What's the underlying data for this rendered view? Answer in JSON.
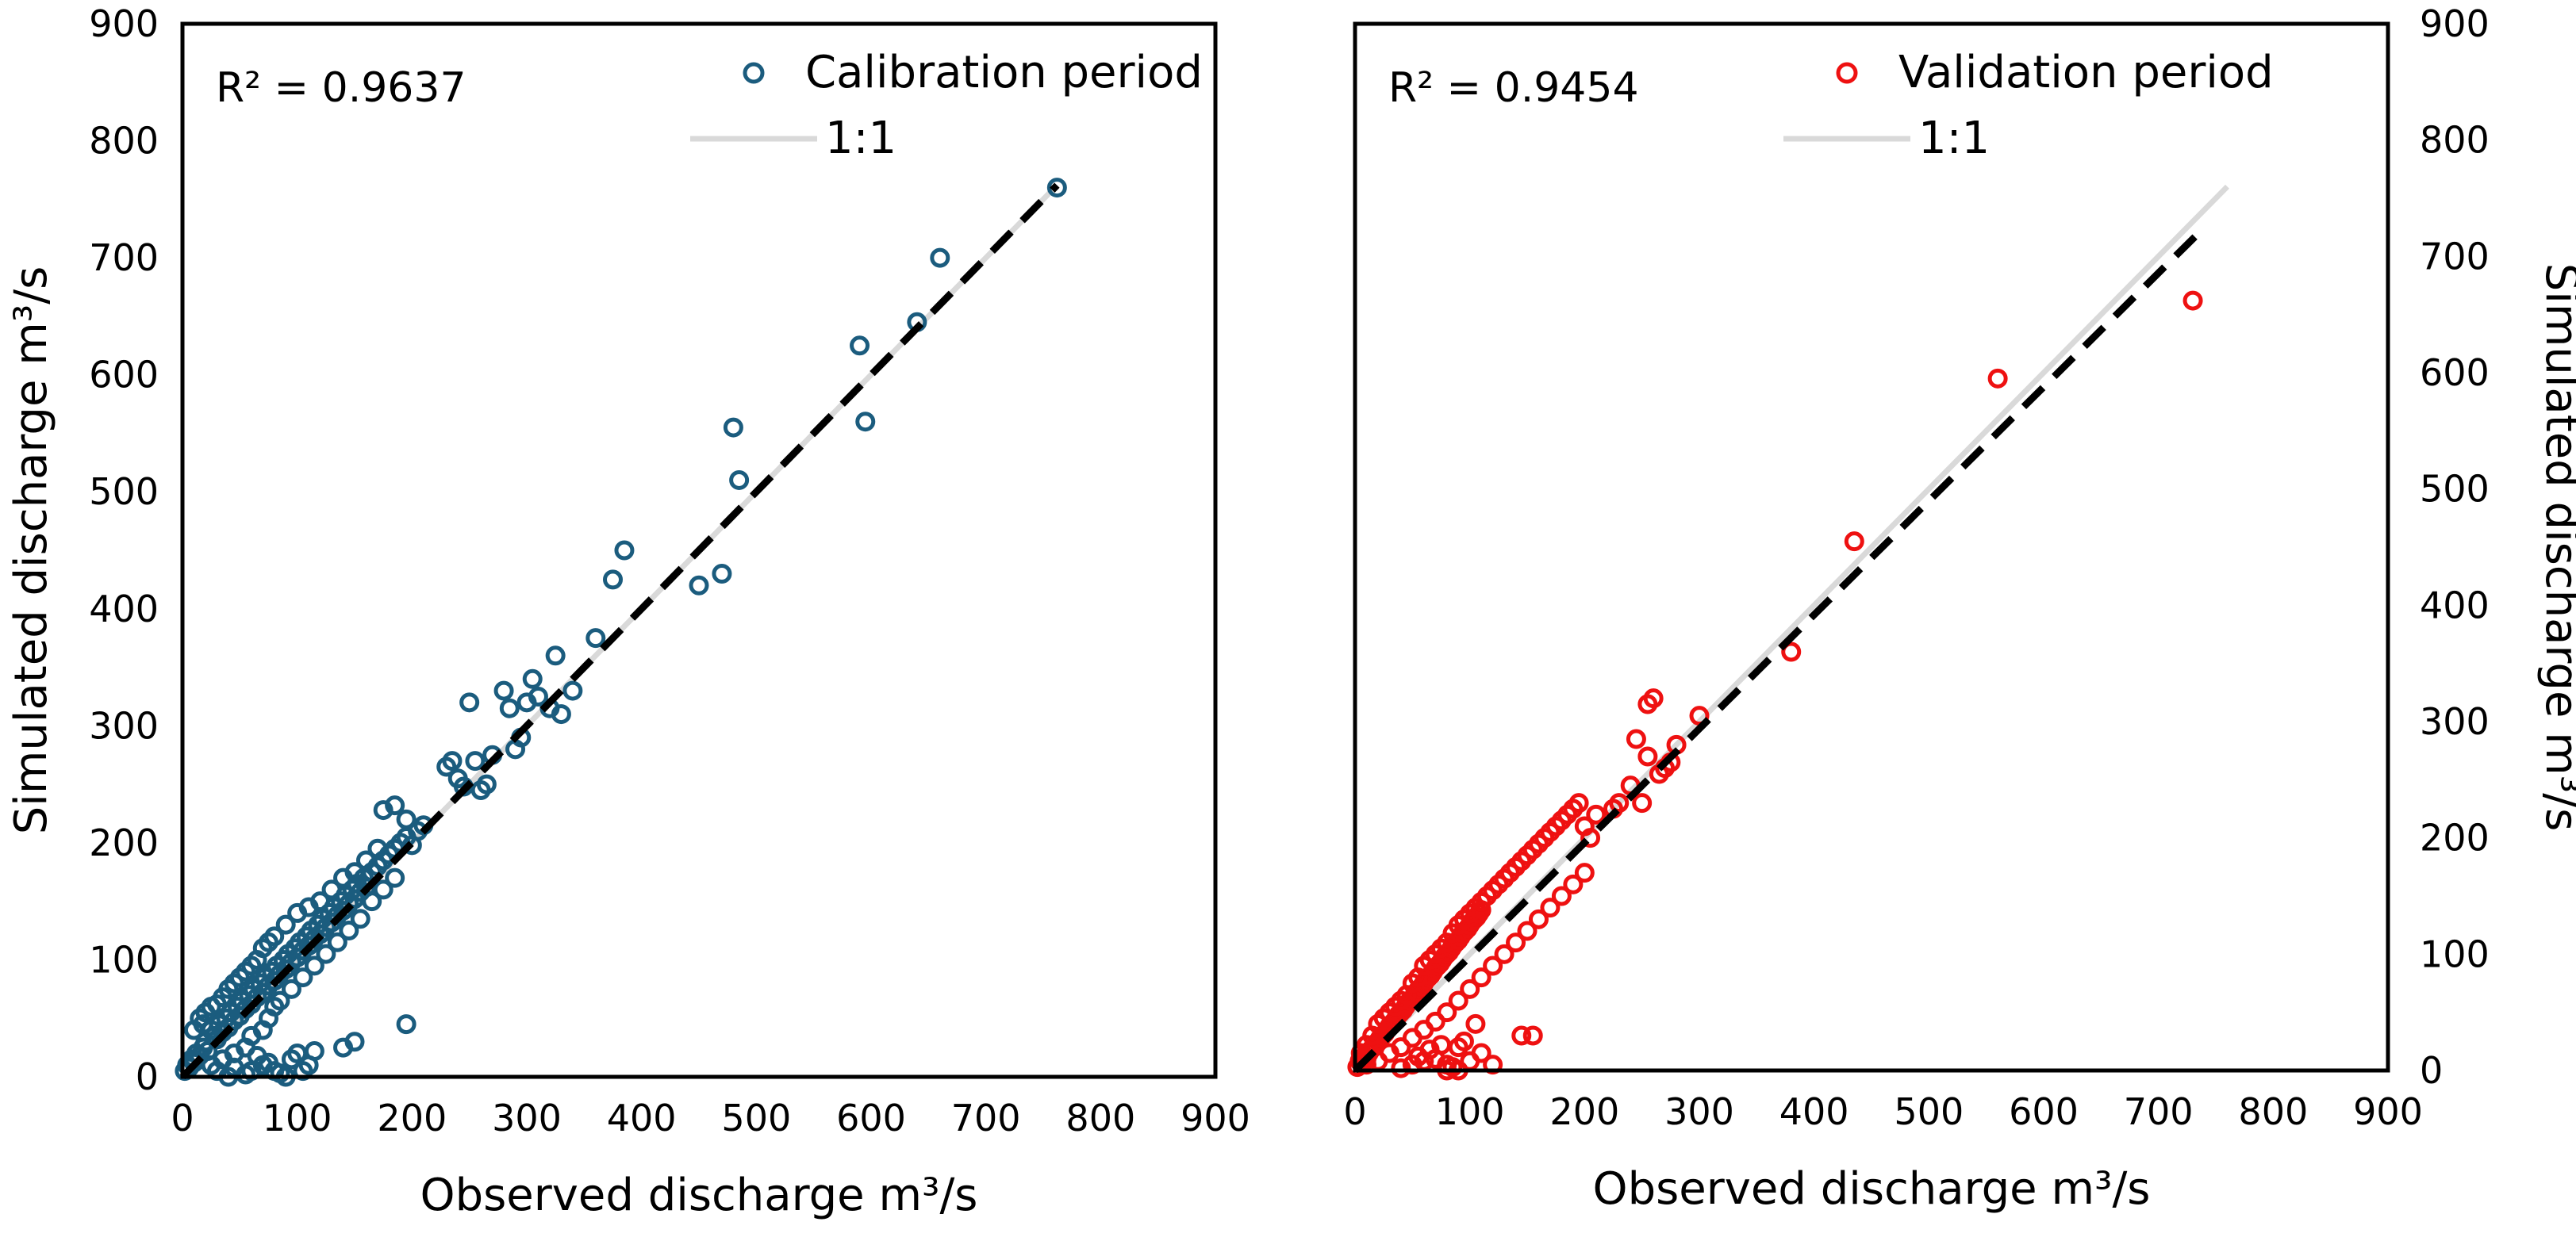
{
  "colors": {
    "calibration": "#1b5c7e",
    "validation": "#ee1111",
    "one_to_one": "#d9d9d9",
    "trend": "#000000",
    "frame": "#000000"
  },
  "chart_data": [
    {
      "type": "scatter",
      "id": "calibration",
      "xlabel": "Observed discharge m³/s",
      "ylabel": "Simulated discharge m³/s",
      "xlim": [
        0,
        900
      ],
      "ylim": [
        0,
        900
      ],
      "xticks": [
        "0",
        "100",
        "200",
        "300",
        "400",
        "500",
        "600",
        "700",
        "800",
        "900"
      ],
      "yticks": [
        "0",
        "100",
        "200",
        "300",
        "400",
        "500",
        "600",
        "700",
        "800",
        "900"
      ],
      "ytick_side": "left",
      "annotation": "R² = 0.9637",
      "legend": {
        "series_label": "Calibration period",
        "line_label": "1:1"
      },
      "one_to_one": [
        [
          0,
          0
        ],
        [
          760,
          760
        ]
      ],
      "trend_line": [
        [
          0,
          0
        ],
        [
          762,
          762
        ]
      ],
      "points": [
        [
          2,
          5
        ],
        [
          4,
          10
        ],
        [
          6,
          8
        ],
        [
          8,
          15
        ],
        [
          10,
          12
        ],
        [
          12,
          20
        ],
        [
          15,
          18
        ],
        [
          18,
          25
        ],
        [
          20,
          30
        ],
        [
          22,
          22
        ],
        [
          25,
          40
        ],
        [
          28,
          35
        ],
        [
          30,
          32
        ],
        [
          32,
          45
        ],
        [
          35,
          38
        ],
        [
          38,
          50
        ],
        [
          40,
          42
        ],
        [
          42,
          55
        ],
        [
          45,
          48
        ],
        [
          48,
          60
        ],
        [
          50,
          52
        ],
        [
          52,
          65
        ],
        [
          55,
          58
        ],
        [
          58,
          70
        ],
        [
          60,
          62
        ],
        [
          62,
          75
        ],
        [
          65,
          68
        ],
        [
          68,
          80
        ],
        [
          70,
          72
        ],
        [
          72,
          85
        ],
        [
          75,
          78
        ],
        [
          78,
          90
        ],
        [
          80,
          82
        ],
        [
          82,
          95
        ],
        [
          85,
          88
        ],
        [
          88,
          100
        ],
        [
          90,
          92
        ],
        [
          92,
          105
        ],
        [
          95,
          98
        ],
        [
          98,
          110
        ],
        [
          100,
          102
        ],
        [
          102,
          115
        ],
        [
          105,
          108
        ],
        [
          108,
          120
        ],
        [
          110,
          112
        ],
        [
          112,
          125
        ],
        [
          115,
          118
        ],
        [
          118,
          130
        ],
        [
          120,
          122
        ],
        [
          122,
          135
        ],
        [
          125,
          128
        ],
        [
          128,
          140
        ],
        [
          130,
          132
        ],
        [
          132,
          145
        ],
        [
          135,
          138
        ],
        [
          138,
          150
        ],
        [
          140,
          142
        ],
        [
          142,
          155
        ],
        [
          145,
          148
        ],
        [
          148,
          160
        ],
        [
          150,
          152
        ],
        [
          152,
          165
        ],
        [
          155,
          158
        ],
        [
          158,
          170
        ],
        [
          160,
          162
        ],
        [
          165,
          175
        ],
        [
          170,
          180
        ],
        [
          175,
          185
        ],
        [
          180,
          190
        ],
        [
          185,
          195
        ],
        [
          190,
          200
        ],
        [
          195,
          205
        ],
        [
          200,
          198
        ],
        [
          205,
          210
        ],
        [
          210,
          215
        ],
        [
          15,
          50
        ],
        [
          20,
          55
        ],
        [
          25,
          60
        ],
        [
          30,
          62
        ],
        [
          35,
          68
        ],
        [
          10,
          40
        ],
        [
          18,
          45
        ],
        [
          40,
          75
        ],
        [
          45,
          80
        ],
        [
          50,
          85
        ],
        [
          55,
          90
        ],
        [
          60,
          95
        ],
        [
          65,
          100
        ],
        [
          70,
          110
        ],
        [
          75,
          115
        ],
        [
          80,
          120
        ],
        [
          90,
          130
        ],
        [
          100,
          140
        ],
        [
          110,
          145
        ],
        [
          120,
          150
        ],
        [
          130,
          160
        ],
        [
          140,
          170
        ],
        [
          150,
          175
        ],
        [
          160,
          185
        ],
        [
          170,
          195
        ],
        [
          175,
          228
        ],
        [
          185,
          232
        ],
        [
          195,
          220
        ],
        [
          25,
          10
        ],
        [
          35,
          15
        ],
        [
          45,
          20
        ],
        [
          55,
          25
        ],
        [
          60,
          35
        ],
        [
          70,
          40
        ],
        [
          75,
          50
        ],
        [
          80,
          60
        ],
        [
          85,
          65
        ],
        [
          95,
          75
        ],
        [
          105,
          85
        ],
        [
          115,
          95
        ],
        [
          125,
          105
        ],
        [
          135,
          115
        ],
        [
          145,
          125
        ],
        [
          155,
          135
        ],
        [
          165,
          150
        ],
        [
          175,
          160
        ],
        [
          185,
          170
        ],
        [
          30,
          5
        ],
        [
          45,
          8
        ],
        [
          60,
          5
        ],
        [
          70,
          10
        ],
        [
          80,
          5
        ],
        [
          85,
          3
        ],
        [
          90,
          0
        ],
        [
          95,
          15
        ],
        [
          100,
          20
        ],
        [
          105,
          5
        ],
        [
          110,
          10
        ],
        [
          115,
          22
        ],
        [
          40,
          0
        ],
        [
          55,
          2
        ],
        [
          65,
          18
        ],
        [
          75,
          12
        ],
        [
          140,
          25
        ],
        [
          150,
          30
        ],
        [
          195,
          45
        ],
        [
          230,
          265
        ],
        [
          235,
          270
        ],
        [
          240,
          255
        ],
        [
          245,
          248
        ],
        [
          250,
          320
        ],
        [
          255,
          270
        ],
        [
          260,
          245
        ],
        [
          265,
          250
        ],
        [
          270,
          275
        ],
        [
          280,
          330
        ],
        [
          285,
          315
        ],
        [
          290,
          280
        ],
        [
          295,
          290
        ],
        [
          300,
          320
        ],
        [
          305,
          340
        ],
        [
          310,
          325
        ],
        [
          320,
          315
        ],
        [
          325,
          360
        ],
        [
          330,
          310
        ],
        [
          340,
          330
        ],
        [
          360,
          375
        ],
        [
          375,
          425
        ],
        [
          385,
          450
        ],
        [
          450,
          420
        ],
        [
          470,
          430
        ],
        [
          480,
          555
        ],
        [
          485,
          510
        ],
        [
          590,
          625
        ],
        [
          595,
          560
        ],
        [
          640,
          645
        ],
        [
          660,
          700
        ],
        [
          762,
          760
        ]
      ]
    },
    {
      "type": "scatter",
      "id": "validation",
      "xlabel": "Observed discharge m³/s",
      "ylabel": "Simulated discharge m³/s",
      "xlim": [
        0,
        900
      ],
      "ylim": [
        0,
        900
      ],
      "xticks": [
        "0",
        "100",
        "200",
        "300",
        "400",
        "500",
        "600",
        "700",
        "800",
        "900"
      ],
      "yticks": [
        "0",
        "100",
        "200",
        "300",
        "400",
        "500",
        "600",
        "700",
        "800",
        "900"
      ],
      "ytick_side": "right",
      "annotation": "R² = 0.9454",
      "legend": {
        "series_label": "Validation period",
        "line_label": "1:1"
      },
      "one_to_one": [
        [
          0,
          0
        ],
        [
          760,
          760
        ]
      ],
      "trend_line": [
        [
          0,
          0
        ],
        [
          735,
          720
        ]
      ],
      "points": [
        [
          2,
          3
        ],
        [
          4,
          8
        ],
        [
          6,
          5
        ],
        [
          8,
          12
        ],
        [
          10,
          10
        ],
        [
          12,
          15
        ],
        [
          14,
          18
        ],
        [
          16,
          20
        ],
        [
          18,
          22
        ],
        [
          20,
          25
        ],
        [
          22,
          28
        ],
        [
          24,
          30
        ],
        [
          26,
          32
        ],
        [
          28,
          35
        ],
        [
          30,
          38
        ],
        [
          32,
          40
        ],
        [
          34,
          42
        ],
        [
          36,
          45
        ],
        [
          38,
          48
        ],
        [
          40,
          50
        ],
        [
          42,
          52
        ],
        [
          44,
          55
        ],
        [
          46,
          58
        ],
        [
          48,
          60
        ],
        [
          50,
          62
        ],
        [
          52,
          65
        ],
        [
          54,
          68
        ],
        [
          56,
          70
        ],
        [
          58,
          72
        ],
        [
          60,
          75
        ],
        [
          62,
          78
        ],
        [
          64,
          80
        ],
        [
          66,
          82
        ],
        [
          68,
          85
        ],
        [
          70,
          88
        ],
        [
          72,
          90
        ],
        [
          74,
          92
        ],
        [
          76,
          95
        ],
        [
          78,
          98
        ],
        [
          80,
          100
        ],
        [
          82,
          102
        ],
        [
          84,
          105
        ],
        [
          86,
          108
        ],
        [
          88,
          110
        ],
        [
          90,
          112
        ],
        [
          92,
          115
        ],
        [
          94,
          118
        ],
        [
          96,
          120
        ],
        [
          98,
          122
        ],
        [
          100,
          125
        ],
        [
          102,
          128
        ],
        [
          104,
          130
        ],
        [
          106,
          132
        ],
        [
          108,
          135
        ],
        [
          110,
          138
        ],
        [
          5,
          15
        ],
        [
          10,
          22
        ],
        [
          15,
          30
        ],
        [
          20,
          40
        ],
        [
          25,
          45
        ],
        [
          30,
          50
        ],
        [
          35,
          55
        ],
        [
          40,
          60
        ],
        [
          45,
          65
        ],
        [
          50,
          75
        ],
        [
          55,
          80
        ],
        [
          60,
          90
        ],
        [
          65,
          95
        ],
        [
          70,
          100
        ],
        [
          75,
          105
        ],
        [
          80,
          110
        ],
        [
          85,
          118
        ],
        [
          90,
          125
        ],
        [
          95,
          130
        ],
        [
          100,
          135
        ],
        [
          105,
          140
        ],
        [
          110,
          145
        ],
        [
          115,
          150
        ],
        [
          120,
          155
        ],
        [
          125,
          160
        ],
        [
          130,
          165
        ],
        [
          135,
          170
        ],
        [
          140,
          175
        ],
        [
          145,
          180
        ],
        [
          150,
          185
        ],
        [
          155,
          190
        ],
        [
          160,
          195
        ],
        [
          165,
          200
        ],
        [
          170,
          205
        ],
        [
          175,
          210
        ],
        [
          180,
          215
        ],
        [
          185,
          220
        ],
        [
          190,
          225
        ],
        [
          195,
          230
        ],
        [
          10,
          5
        ],
        [
          20,
          8
        ],
        [
          30,
          15
        ],
        [
          40,
          20
        ],
        [
          50,
          28
        ],
        [
          60,
          35
        ],
        [
          70,
          42
        ],
        [
          80,
          50
        ],
        [
          90,
          60
        ],
        [
          100,
          70
        ],
        [
          110,
          80
        ],
        [
          120,
          90
        ],
        [
          130,
          100
        ],
        [
          140,
          110
        ],
        [
          150,
          120
        ],
        [
          160,
          130
        ],
        [
          170,
          140
        ],
        [
          180,
          150
        ],
        [
          190,
          160
        ],
        [
          200,
          170
        ],
        [
          40,
          2
        ],
        [
          50,
          5
        ],
        [
          60,
          8
        ],
        [
          70,
          10
        ],
        [
          80,
          5
        ],
        [
          90,
          0
        ],
        [
          95,
          25
        ],
        [
          100,
          8
        ],
        [
          110,
          15
        ],
        [
          120,
          5
        ],
        [
          55,
          12
        ],
        [
          65,
          18
        ],
        [
          75,
          22
        ],
        [
          145,
          30
        ],
        [
          155,
          30
        ],
        [
          80,
          0
        ],
        [
          85,
          3
        ],
        [
          105,
          40
        ],
        [
          90,
          20
        ],
        [
          200,
          210
        ],
        [
          205,
          200
        ],
        [
          210,
          220
        ],
        [
          225,
          225
        ],
        [
          230,
          230
        ],
        [
          240,
          245
        ],
        [
          245,
          285
        ],
        [
          250,
          230
        ],
        [
          255,
          270
        ],
        [
          255,
          315
        ],
        [
          260,
          320
        ],
        [
          265,
          255
        ],
        [
          270,
          260
        ],
        [
          275,
          265
        ],
        [
          280,
          280
        ],
        [
          300,
          305
        ],
        [
          380,
          360
        ],
        [
          435,
          455
        ],
        [
          560,
          595
        ],
        [
          730,
          662
        ]
      ]
    }
  ]
}
